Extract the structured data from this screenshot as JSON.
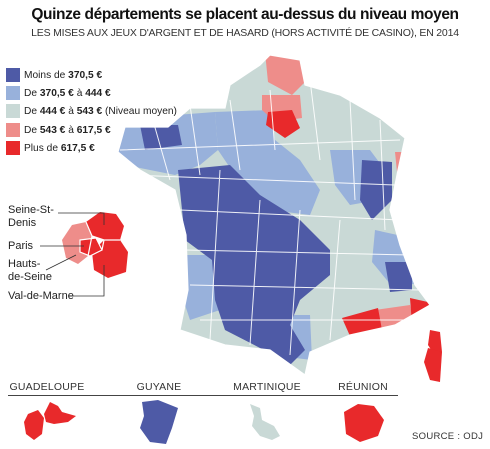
{
  "title": "Quinze départements se placent au-dessus du niveau moyen",
  "subtitle": "LES MISES AUX JEUX D'ARGENT ET DE HASARD (HORS ACTIVITÉ DE CASINO), EN 2014",
  "legend": [
    {
      "pre": "Moins de ",
      "v1": "370,5 €",
      "mid": "",
      "v2": "",
      "post": "",
      "color": "#4e5aa6"
    },
    {
      "pre": "De ",
      "v1": "370,5 €",
      "mid": " à ",
      "v2": "444 €",
      "post": "",
      "color": "#98b1db"
    },
    {
      "pre": "De ",
      "v1": "444 €",
      "mid": " à ",
      "v2": "543 €",
      "post": " (Niveau moyen)",
      "color": "#c9d9d6"
    },
    {
      "pre": "De ",
      "v1": "543 €",
      "mid": " à ",
      "v2": "617,5 €",
      "post": "",
      "color": "#ee8d8a"
    },
    {
      "pre": "Plus de ",
      "v1": "617,5 €",
      "mid": "",
      "v2": "",
      "post": "",
      "color": "#e8292b"
    }
  ],
  "callouts": {
    "seine_st_denis": "Seine-St-Denis",
    "seine_st_denis_l1": "Seine-St-",
    "seine_st_denis_l2": "Denis",
    "paris": "Paris",
    "hauts_de_seine_l1": "Hauts-",
    "hauts_de_seine_l2": "de-Seine",
    "val_de_marne": "Val-de-Marne"
  },
  "overseas": [
    {
      "name": "GUADELOUPE",
      "color": "#e8292b"
    },
    {
      "name": "GUYANE",
      "color": "#4e5aa6"
    },
    {
      "name": "MARTINIQUE",
      "color": "#c9d9d6"
    },
    {
      "name": "RÉUNION",
      "color": "#e8292b"
    }
  ],
  "source": "SOURCE : ODJ",
  "colors": {
    "low": "#4e5aa6",
    "mid_low": "#98b1db",
    "average": "#c9d9d6",
    "mid_high": "#ee8d8a",
    "high": "#e8292b"
  }
}
